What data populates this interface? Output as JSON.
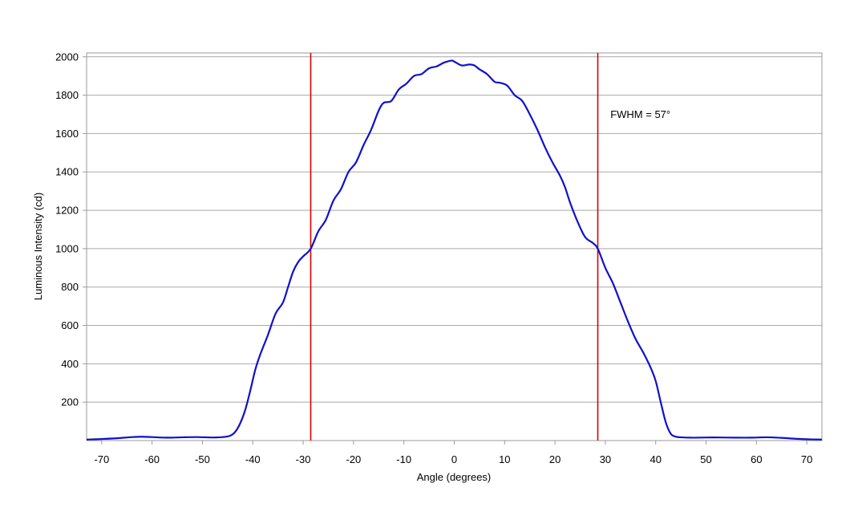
{
  "chart_data": {
    "type": "line",
    "title": "",
    "xlabel": "Angle (degrees)",
    "ylabel": "Luminous Intensity (cd)",
    "xlim": [
      -73,
      73
    ],
    "ylim": [
      0,
      2020
    ],
    "grid": true,
    "legend": "none",
    "x_ticks": [
      "-70",
      "-60",
      "-50",
      "-40",
      "-30",
      "-20",
      "-10",
      "0",
      "10",
      "20",
      "30",
      "40",
      "50",
      "60",
      "70"
    ],
    "y_ticks": [
      "200",
      "400",
      "600",
      "800",
      "1000",
      "1200",
      "1400",
      "1600",
      "1800",
      "2000"
    ],
    "annotations": [
      {
        "text": "FWHM = 57°",
        "x": 31,
        "y": 1700
      }
    ],
    "reference_lines": [
      {
        "orientation": "vertical",
        "x": -28.5,
        "color": "#dd0000"
      },
      {
        "orientation": "vertical",
        "x": 28.5,
        "color": "#dd0000"
      }
    ],
    "series": [
      {
        "color": "#1010cc",
        "x": [
          -73,
          -70,
          -67,
          -64,
          -62,
          -60,
          -57,
          -54,
          -51,
          -48,
          -46,
          -44.5,
          -43.5,
          -42.5,
          -41.5,
          -40.5,
          -39.5,
          -38.5,
          -37,
          -35.5,
          -34,
          -33,
          -32,
          -31,
          -30,
          -28.5,
          -27,
          -25.5,
          -24,
          -22.5,
          -21,
          -19.5,
          -18,
          -16.5,
          -15,
          -14,
          -12.5,
          -11,
          -9.5,
          -8,
          -6.5,
          -5,
          -3.5,
          -2,
          -0.5,
          0,
          1.5,
          3,
          4,
          5,
          6.5,
          8,
          9,
          10.5,
          12,
          13.5,
          15,
          16.5,
          18,
          19.5,
          21,
          22,
          23,
          24.5,
          26,
          27.5,
          28.5,
          30,
          31.5,
          33,
          34.5,
          36,
          37.5,
          39,
          40,
          41,
          42,
          43,
          44,
          45,
          47,
          50,
          53,
          56,
          59,
          62,
          65,
          68,
          71,
          73
        ],
        "y": [
          5,
          8,
          12,
          18,
          20,
          18,
          15,
          17,
          18,
          16,
          18,
          25,
          45,
          90,
          160,
          260,
          370,
          450,
          550,
          660,
          720,
          800,
          880,
          930,
          960,
          1000,
          1090,
          1150,
          1250,
          1310,
          1400,
          1450,
          1540,
          1620,
          1720,
          1760,
          1770,
          1830,
          1860,
          1900,
          1910,
          1940,
          1950,
          1970,
          1980,
          1975,
          1955,
          1960,
          1955,
          1935,
          1910,
          1870,
          1865,
          1850,
          1800,
          1770,
          1700,
          1620,
          1530,
          1450,
          1380,
          1320,
          1240,
          1140,
          1060,
          1030,
          1000,
          900,
          820,
          720,
          620,
          530,
          460,
          380,
          310,
          200,
          95,
          35,
          20,
          17,
          15,
          16,
          16,
          15,
          15,
          17,
          14,
          9,
          6,
          5
        ]
      }
    ]
  }
}
